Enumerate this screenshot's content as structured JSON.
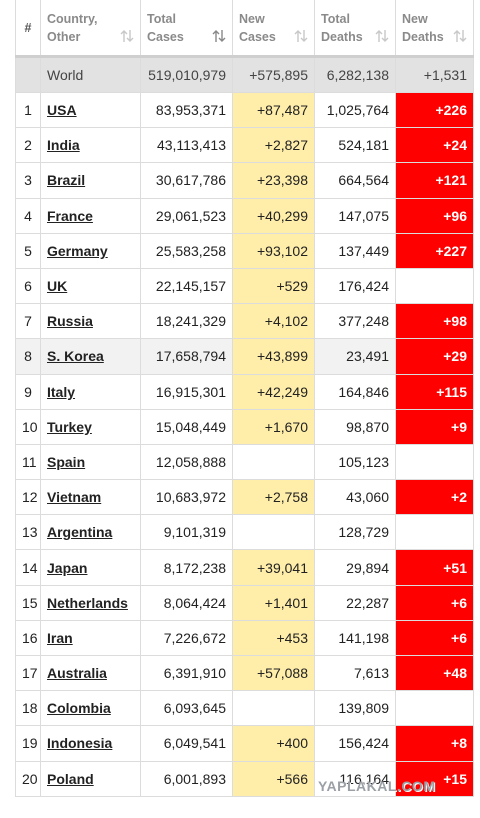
{
  "table": {
    "header": [
      "#",
      "Country,\nOther",
      "Total\nCases",
      "New\nCases",
      "Total\nDeaths",
      "New\nDeaths"
    ],
    "world": [
      "World",
      "519,010,979",
      "+575,895",
      "6,282,138",
      "+1,531"
    ],
    "rows": [
      [
        "1",
        "USA",
        "83,953,371",
        "+87,487",
        "1,025,764",
        "+226"
      ],
      [
        "2",
        "India",
        "43,113,413",
        "+2,827",
        "524,181",
        "+24"
      ],
      [
        "3",
        "Brazil",
        "30,617,786",
        "+23,398",
        "664,564",
        "+121"
      ],
      [
        "4",
        "France",
        "29,061,523",
        "+40,299",
        "147,075",
        "+96"
      ],
      [
        "5",
        "Germany",
        "25,583,258",
        "+93,102",
        "137,449",
        "+227"
      ],
      [
        "6",
        "UK",
        "22,145,157",
        "+529",
        "176,424",
        null
      ],
      [
        "7",
        "Russia",
        "18,241,329",
        "+4,102",
        "377,248",
        "+98"
      ],
      [
        "8",
        "S. Korea",
        "17,658,794",
        "+43,899",
        "23,491",
        "+29"
      ],
      [
        "9",
        "Italy",
        "16,915,301",
        "+42,249",
        "164,846",
        "+115"
      ],
      [
        "10",
        "Turkey",
        "15,048,449",
        "+1,670",
        "98,870",
        "+9"
      ],
      [
        "11",
        "Spain",
        "12,058,888",
        null,
        "105,123",
        null
      ],
      [
        "12",
        "Vietnam",
        "10,683,972",
        "+2,758",
        "43,060",
        "+2"
      ],
      [
        "13",
        "Argentina",
        "9,101,319",
        null,
        "128,729",
        null
      ],
      [
        "14",
        "Japan",
        "8,172,238",
        "+39,041",
        "29,894",
        "+51"
      ],
      [
        "15",
        "Netherlands",
        "8,064,424",
        "+1,401",
        "22,287",
        "+6"
      ],
      [
        "16",
        "Iran",
        "7,226,672",
        "+453",
        "141,198",
        "+6"
      ],
      [
        "17",
        "Australia",
        "6,391,910",
        "+57,088",
        "7,613",
        "+48"
      ],
      [
        "18",
        "Colombia",
        "6,093,645",
        null,
        "139,809",
        null
      ],
      [
        "19",
        "Indonesia",
        "6,049,541",
        "+400",
        "156,424",
        "+8"
      ],
      [
        "20",
        "Poland",
        "6,001,893",
        "+566",
        "116,164",
        "+15"
      ]
    ]
  },
  "watermark": "YAPLAKAL.COM"
}
